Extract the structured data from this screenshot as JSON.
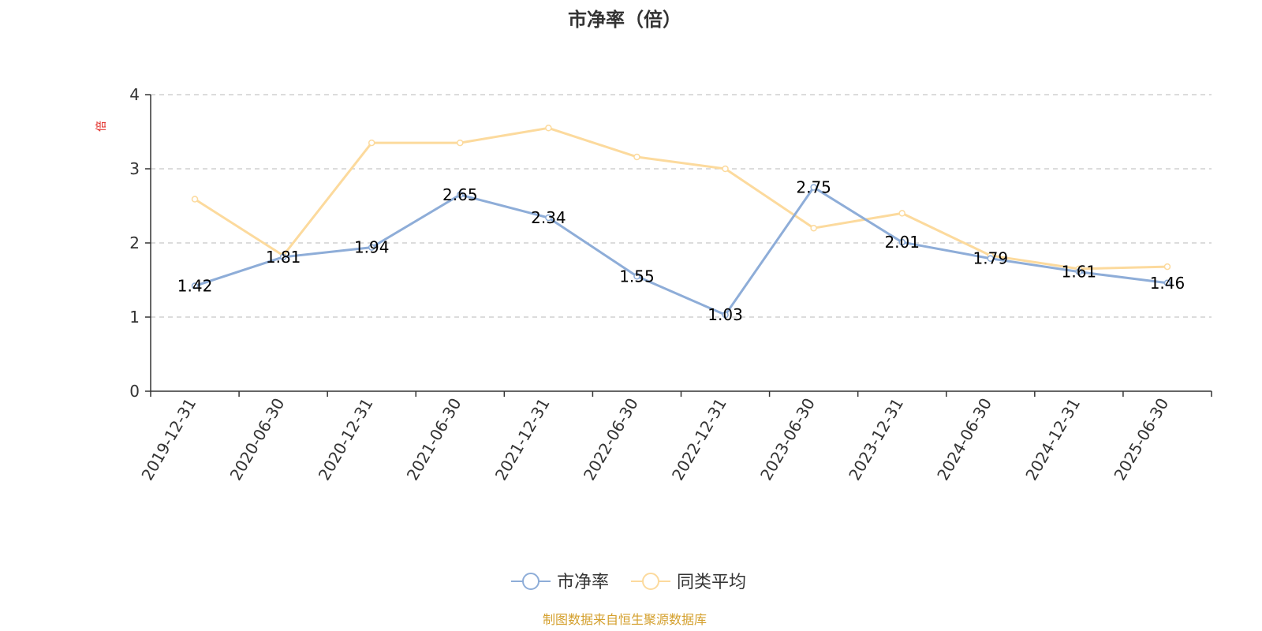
{
  "chart_data": {
    "type": "line",
    "title": "市净率（倍）",
    "ylabel": "倍",
    "xlabel": "",
    "ylim": [
      0,
      4
    ],
    "yticks": [
      0,
      1,
      2,
      3,
      4
    ],
    "grid": true,
    "legend_position": "bottom-center",
    "categories": [
      "2019-12-31",
      "2020-06-30",
      "2020-12-31",
      "2021-06-30",
      "2021-12-31",
      "2022-06-30",
      "2022-12-31",
      "2023-06-30",
      "2023-12-31",
      "2024-06-30",
      "2024-12-31",
      "2025-06-30"
    ],
    "series": [
      {
        "name": "市净率",
        "color": "#8eadd8",
        "values": [
          1.42,
          1.81,
          1.94,
          2.65,
          2.34,
          1.55,
          1.03,
          2.75,
          2.01,
          1.79,
          1.61,
          1.46
        ],
        "labels": [
          "1.42",
          "1.81",
          "1.94",
          "2.65",
          "2.34",
          "1.55",
          "1.03",
          "2.75",
          "2.01",
          "1.79",
          "1.61",
          "1.46"
        ]
      },
      {
        "name": "同类平均",
        "color": "#fcda9d",
        "values": [
          2.59,
          1.83,
          3.35,
          3.35,
          3.55,
          3.16,
          3.0,
          2.2,
          2.4,
          1.83,
          1.65,
          1.68
        ]
      }
    ]
  },
  "source_text": "制图数据来自恒生聚源数据库",
  "colors": {
    "axis": "#333333",
    "grid": "#c8c8c8",
    "ylabel": "#e0201b",
    "source": "#d4a02e"
  }
}
